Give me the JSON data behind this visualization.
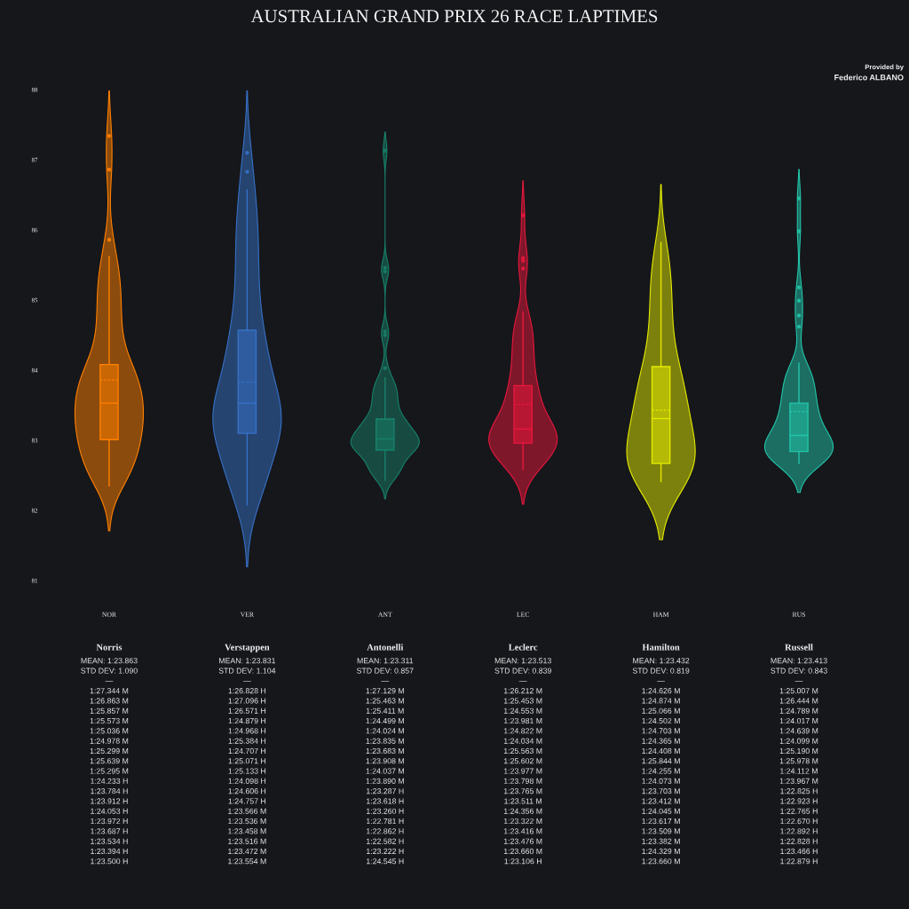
{
  "chart_data": {
    "type": "box",
    "title": "AUSTRALIAN GRAND PRIX 26 RACE LAPTIMES",
    "categories": [
      "NOR",
      "VER",
      "ANT",
      "LEC",
      "HAM",
      "RUS"
    ],
    "colors": [
      "#ff8000",
      "#3671c6",
      "#17806a",
      "#e8173c",
      "#e2ea00",
      "#22c5aa"
    ],
    "boxes": [
      {
        "low": 82.35,
        "q1": 83.01,
        "median": 83.53,
        "q3": 84.08,
        "high": 85.62,
        "mean": 83.86,
        "outliers": [
          87.34,
          86.86,
          85.86
        ]
      },
      {
        "low": 82.08,
        "q1": 83.1,
        "median": 83.53,
        "q3": 84.57,
        "high": 86.57,
        "mean": 83.83,
        "outliers": [
          87.1,
          86.83
        ]
      },
      {
        "low": 82.43,
        "q1": 82.86,
        "median": 83.02,
        "q3": 83.3,
        "high": 83.89,
        "mean": 83.31,
        "outliers": [
          87.13,
          85.46,
          85.41,
          84.55,
          84.5,
          84.03
        ]
      },
      {
        "low": 82.58,
        "q1": 82.96,
        "median": 83.16,
        "q3": 83.78,
        "high": 84.83,
        "mean": 83.51,
        "outliers": [
          86.21,
          85.6,
          85.56,
          85.45
        ]
      },
      {
        "low": 82.41,
        "q1": 82.67,
        "median": 83.31,
        "q3": 84.05,
        "high": 85.82,
        "mean": 83.43
      },
      {
        "low": 82.67,
        "q1": 82.84,
        "median": 83.07,
        "q3": 83.53,
        "high": 84.1,
        "mean": 83.41,
        "outliers": [
          86.45,
          85.98,
          85.18,
          84.99,
          84.78,
          84.62
        ]
      }
    ],
    "ylim": [
      81,
      88
    ],
    "yticks": [
      81,
      82,
      83,
      84,
      85,
      86,
      87,
      88
    ],
    "annotations": [
      "Provided by",
      "Federico ALBANO",
      "Norris",
      "MEAN: 1:23.863",
      "STD DEV: 1.090",
      "—",
      "1:27.344 M",
      "1:26.863 M",
      "1:25.857 M",
      "1:25.573 M",
      "1:25.036 M",
      "1:24.978 M",
      "1:25.299 M",
      "1:25.639 M",
      "1:25.295 M",
      "1:24.233 H",
      "1:23.784 H",
      "1:23.912 H",
      "1:24.053 H",
      "1:23.972 H",
      "1:23.687 H",
      "1:23.534 H",
      "1:23.394 H",
      "1:23.500 H",
      "Verstappen",
      "MEAN: 1:23.831",
      "STD DEV: 1.104",
      "—",
      "1:26.828 H",
      "1:27.096 H",
      "1:26.571 H",
      "1:24.879 H",
      "1:24.968 H",
      "1:25.384 H",
      "1:24.707 H",
      "1:25.071 H",
      "1:25.133 H",
      "1:24.098 H",
      "1:24.606 H",
      "1:24.757 H",
      "1:23.566 M",
      "1:23.536 M",
      "1:23.458 M",
      "1:23.516 M",
      "1:23.472 M",
      "1:23.554 M",
      "Antonelli",
      "MEAN: 1:23.311",
      "STD DEV: 0.857",
      "—",
      "1:27.129 M",
      "1:25.463 M",
      "1:25.411 M",
      "1:24.499 M",
      "1:24.024 M",
      "1:23.835 M",
      "1:23.683 M",
      "1:23.908 M",
      "1:24.037 M",
      "1:23.890 M",
      "1:23.287 H",
      "1:23.618 H",
      "1:23.260 H",
      "1:22.781 H",
      "1:22.862 H",
      "1:22.582 H",
      "1:23.222 H",
      "1:24.545 H",
      "Leclerc",
      "MEAN: 1:23.513",
      "STD DEV: 0.839",
      "—",
      "1:26.212 M",
      "1:25.453 M",
      "1:24.553 M",
      "1:23.981 M",
      "1:24.822 M",
      "1:24.034 M",
      "1:25.563 M",
      "1:25.602 M",
      "1:23.977 M",
      "1:23.798 M",
      "1:23.765 M",
      "1:23.511 M",
      "1:24.356 M",
      "1:23.322 M",
      "1:23.416 M",
      "1:23.476 M",
      "1:23.660 M",
      "1:23.106 H",
      "Hamilton",
      "MEAN: 1:23.432",
      "STD DEV: 0.819",
      "—",
      "1:24.626 M",
      "1:24.874 M",
      "1:25.066 M",
      "1:24.502 M",
      "1:24.703 M",
      "1:24.365 M",
      "1:24.408 M",
      "1:25.844 M",
      "1:24.255 M",
      "1:24.073 M",
      "1:23.703 M",
      "1:23.412 M",
      "1:24.045 M",
      "1:23.617 M",
      "1:23.509 M",
      "1:23.382 M",
      "1:24.329 M",
      "1:23.660 M",
      "Russell",
      "MEAN: 1:23.413",
      "STD DEV: 0.843",
      "—",
      "1:25.007 M",
      "1:26.444 M",
      "1:24.789 M",
      "1:24.017 M",
      "1:24.639 M",
      "1:24.099 M",
      "1:25.190 M",
      "1:25.978 M",
      "1:24.112 M",
      "1:23.967 M",
      "1:22.825 H",
      "1:22.923 H",
      "1:22.765 H",
      "1:22.670 H",
      "1:22.892 H",
      "1:22.828 H",
      "1:23.466 H",
      "1:22.879 H"
    ]
  }
}
